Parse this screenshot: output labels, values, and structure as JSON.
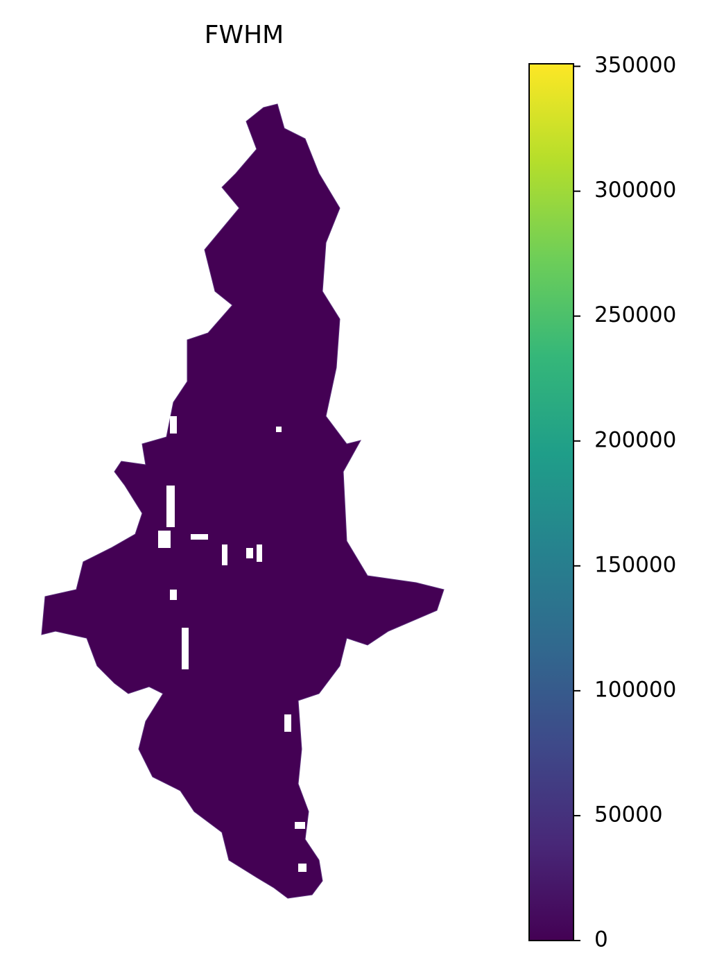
{
  "chart_data": {
    "type": "choropleth",
    "title": "FWHM",
    "colorbar": {
      "colormap": "viridis",
      "lim": [
        0,
        351000
      ],
      "ticks": [
        0,
        50000,
        100000,
        150000,
        200000,
        250000,
        300000,
        350000
      ]
    }
  }
}
